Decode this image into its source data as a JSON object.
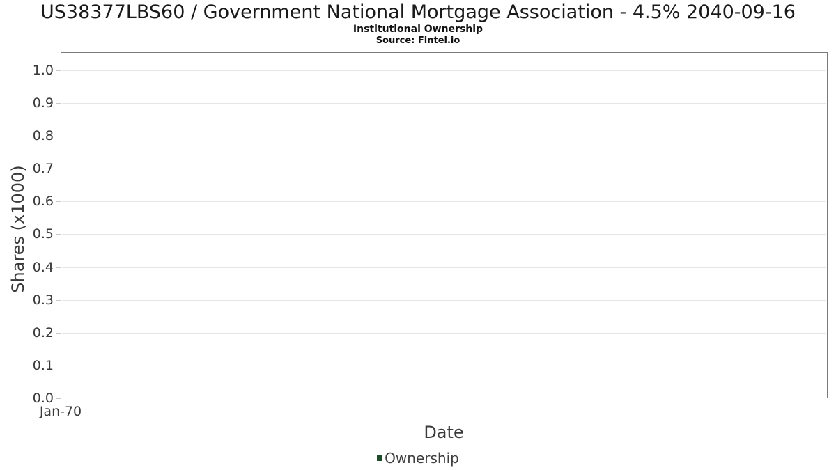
{
  "header": {
    "title": "US38377LBS60 / Government National Mortgage Association - 4.5% 2040-09-16",
    "subtitle": "Institutional Ownership",
    "source": "Source: Fintel.io"
  },
  "chart_data": {
    "type": "line",
    "title": "US38377LBS60 / Government National Mortgage Association - 4.5% 2040-09-16",
    "subtitle": "Institutional Ownership",
    "source": "Source: Fintel.io",
    "xlabel": "Date",
    "ylabel": "Shares (x1000)",
    "xticks": [
      "Jan-70"
    ],
    "yticks": [
      0.0,
      0.1,
      0.2,
      0.3,
      0.4,
      0.5,
      0.6,
      0.7,
      0.8,
      0.9,
      1.0
    ],
    "ylim": [
      0.0,
      1.055
    ],
    "grid": true,
    "legend": {
      "position": "bottom-center",
      "entries": [
        {
          "label": "Ownership",
          "color": "#1e4b29"
        }
      ]
    },
    "series": [
      {
        "name": "Ownership",
        "color": "#1e4b29",
        "x": [],
        "values": []
      }
    ],
    "colors": {
      "grid": "#e6e6e6",
      "axis_border": "#7a7a7a",
      "tick": "#c9c9c9",
      "text": "#3a3a3a"
    }
  }
}
